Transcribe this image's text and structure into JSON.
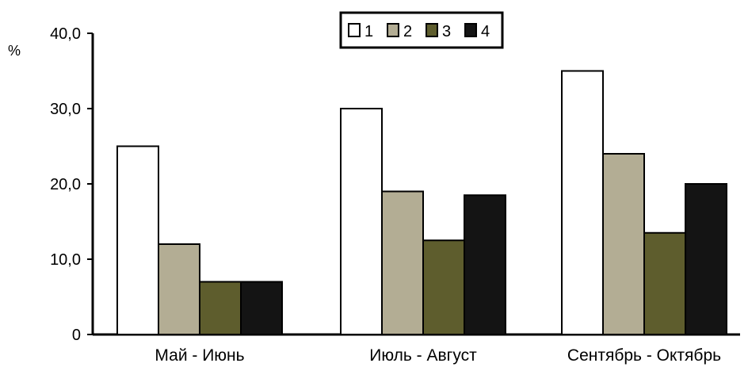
{
  "chart_data": {
    "type": "bar",
    "ylabel": "%",
    "ylim": [
      0,
      40
    ],
    "yticks": [
      "0",
      "10,0",
      "20,0",
      "30,0",
      "40,0"
    ],
    "categories": [
      "Май - Июнь",
      "Июль - Август",
      "Сентябрь - Октябрь"
    ],
    "series": [
      {
        "name": "1",
        "color": "#ffffff",
        "values": [
          25.0,
          30.0,
          35.0
        ]
      },
      {
        "name": "2",
        "color": "#b3ad94",
        "values": [
          12.0,
          19.0,
          24.0
        ]
      },
      {
        "name": "3",
        "color": "#5e5d2d",
        "values": [
          7.0,
          12.5,
          13.5
        ]
      },
      {
        "name": "4",
        "color": "#141414",
        "values": [
          7.0,
          18.5,
          20.0
        ]
      }
    ],
    "legend_position": "top-center",
    "grid": false
  }
}
